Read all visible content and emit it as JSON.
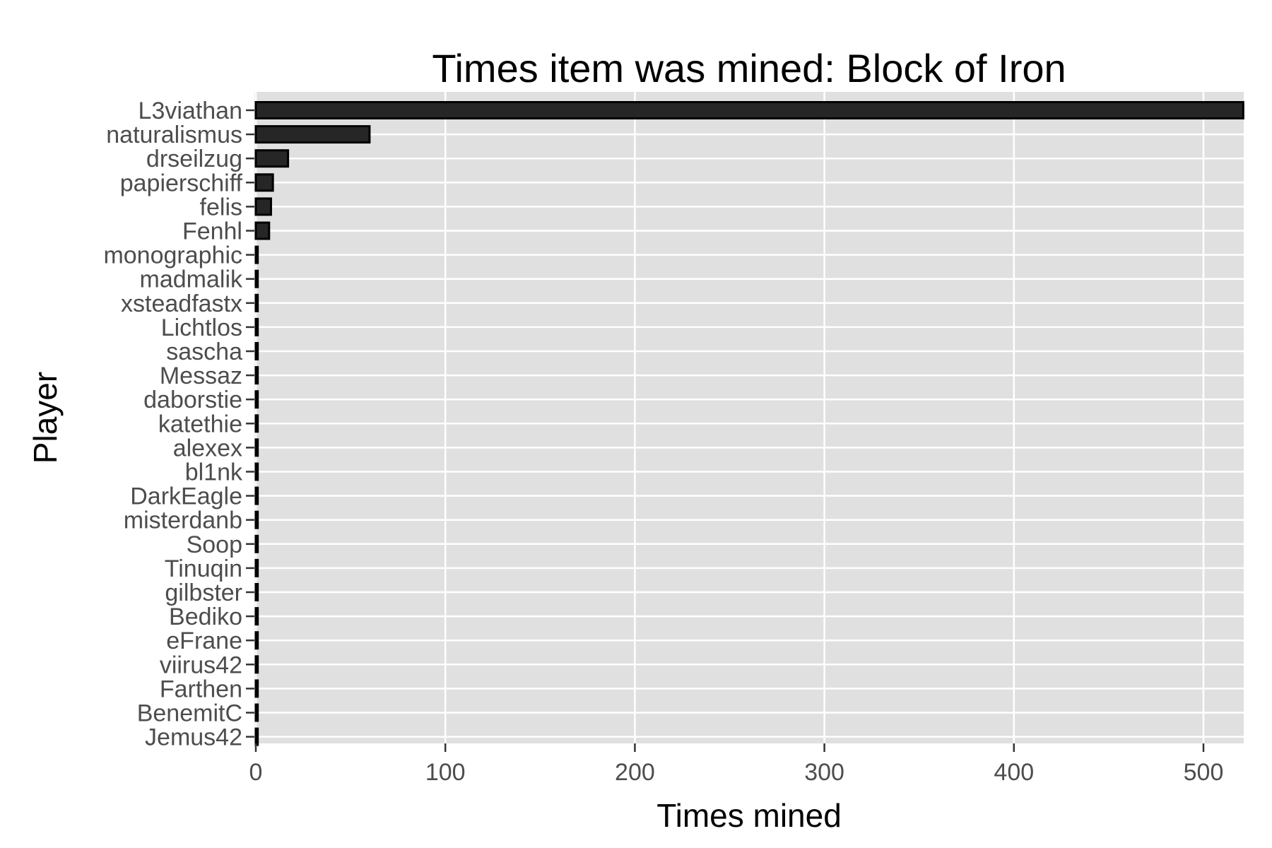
{
  "chart_data": {
    "type": "bar",
    "orientation": "horizontal",
    "title": "Times item was mined: Block of Iron",
    "xlabel": "Times mined",
    "ylabel": "Player",
    "xlim": [
      0,
      521
    ],
    "xticks": [
      0,
      100,
      200,
      300,
      400,
      500
    ],
    "grid": true,
    "colors": {
      "panel": "#e0e0e0",
      "grid": "#ffffff",
      "bar_fill": "#262626",
      "bar_outline": "#000000",
      "tick_text": "#4d4d4d"
    },
    "categories": [
      "L3viathan",
      "naturalismus",
      "drseilzug",
      "papierschiff",
      "felis",
      "Fenhl",
      "monographic",
      "madmalik",
      "xsteadfastx",
      "Lichtlos",
      "sascha",
      "Messaz",
      "daborstie",
      "katethie",
      "alexex",
      "bl1nk",
      "DarkEagle",
      "misterdanb",
      "Soop",
      "Tinuqin",
      "gilbster",
      "Bediko",
      "eFrane",
      "viirus42",
      "Farthen",
      "BenemitC",
      "Jemus42"
    ],
    "values": [
      521,
      60,
      17,
      9,
      8,
      7,
      1,
      1,
      1,
      1,
      1,
      1,
      1,
      1,
      1,
      1,
      1,
      1,
      1,
      1,
      1,
      1,
      1,
      1,
      1,
      1,
      1
    ]
  }
}
